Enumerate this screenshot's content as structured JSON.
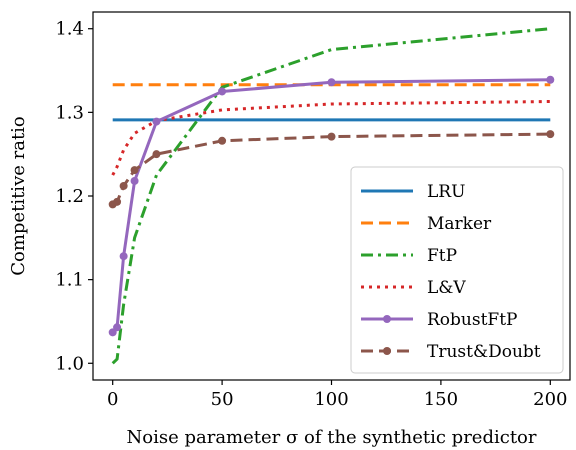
{
  "chart_data": {
    "type": "line",
    "xlabel": "Noise parameter σ of the synthetic predictor",
    "ylabel": "Competitive ratio",
    "xlim": [
      -9,
      209
    ],
    "ylim": [
      0.98,
      1.42
    ],
    "xticks": [
      0,
      50,
      100,
      150,
      200
    ],
    "yticks": [
      1.0,
      1.1,
      1.2,
      1.3,
      1.4
    ],
    "xtick_labels": [
      "0",
      "50",
      "100",
      "150",
      "200"
    ],
    "ytick_labels": [
      "1.0",
      "1.1",
      "1.2",
      "1.3",
      "1.4"
    ],
    "legend_position": "lower-right",
    "grid": false,
    "series": [
      {
        "name": "LRU",
        "color": "#1f77b4",
        "style": "solid",
        "marker": "none",
        "x": [
          0,
          200
        ],
        "y": [
          1.291,
          1.291
        ]
      },
      {
        "name": "Marker",
        "color": "#ff7f0e",
        "style": "dashed",
        "marker": "none",
        "x": [
          0,
          200
        ],
        "y": [
          1.333,
          1.333
        ]
      },
      {
        "name": "FtP",
        "color": "#2ca02c",
        "style": "dashdot",
        "marker": "none",
        "x": [
          0,
          2,
          5,
          10,
          20,
          50,
          100,
          200
        ],
        "y": [
          1.0,
          1.005,
          1.07,
          1.15,
          1.225,
          1.33,
          1.375,
          1.4
        ]
      },
      {
        "name": "L&V",
        "color": "#d62728",
        "style": "dotted",
        "marker": "none",
        "x": [
          0,
          2,
          5,
          10,
          20,
          50,
          100,
          200
        ],
        "y": [
          1.225,
          1.235,
          1.255,
          1.275,
          1.29,
          1.303,
          1.31,
          1.313
        ]
      },
      {
        "name": "RobustFtP",
        "color": "#9467bd",
        "style": "solid",
        "marker": "circle",
        "x": [
          0,
          2,
          5,
          10,
          20,
          50,
          100,
          200
        ],
        "y": [
          1.037,
          1.043,
          1.128,
          1.218,
          1.289,
          1.325,
          1.336,
          1.339
        ]
      },
      {
        "name": "Trust&Doubt",
        "color": "#8c564b",
        "style": "dashed",
        "marker": "circle",
        "x": [
          0,
          2,
          5,
          10,
          20,
          50,
          100,
          200
        ],
        "y": [
          1.19,
          1.193,
          1.212,
          1.231,
          1.25,
          1.266,
          1.271,
          1.274
        ]
      }
    ]
  }
}
